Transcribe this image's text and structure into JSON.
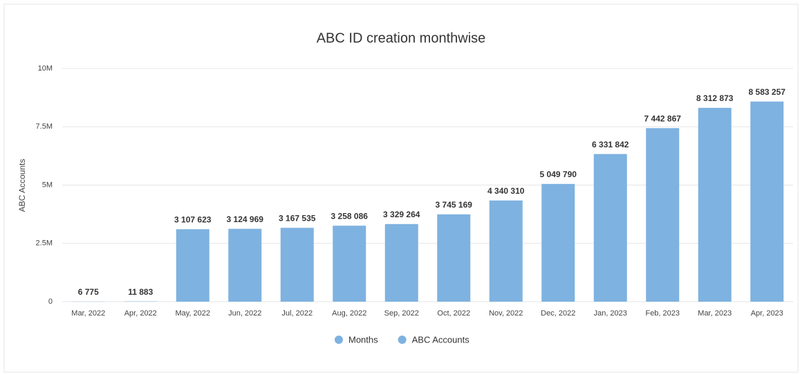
{
  "chart_data": {
    "type": "bar",
    "title": "ABC ID creation monthwise",
    "y_label": "ABC Accounts",
    "categories": [
      "Mar, 2022",
      "Apr, 2022",
      "May, 2022",
      "Jun, 2022",
      "Jul, 2022",
      "Aug, 2022",
      "Sep, 2022",
      "Oct, 2022",
      "Nov, 2022",
      "Dec, 2022",
      "Jan, 2023",
      "Feb, 2023",
      "Mar, 2023",
      "Apr, 2023"
    ],
    "series": [
      {
        "name": "ABC Accounts",
        "color": "#7eb2e0",
        "values": [
          6775,
          11883,
          3107623,
          3124969,
          3167535,
          3258086,
          3329264,
          3745169,
          4340310,
          5049790,
          6331842,
          7442867,
          8312873,
          8583257
        ],
        "value_labels": [
          "6 775",
          "11 883",
          "3 107 623",
          "3 124 969",
          "3 167 535",
          "3 258 086",
          "3 329 264",
          "3 745 169",
          "4 340 310",
          "5 049 790",
          "6 331 842",
          "7 442 867",
          "8 312 873",
          "8 583 257"
        ]
      }
    ],
    "extra_legend": [
      {
        "name": "Months",
        "color": "#7eb2e0"
      }
    ],
    "ylim": [
      0,
      10000000
    ],
    "yticks": [
      0,
      {
        "value": 2500000,
        "label": "2.5M"
      },
      {
        "value": 5000000,
        "label": "5M"
      },
      {
        "value": 7500000,
        "label": "7.5M"
      },
      {
        "value": 10000000,
        "label": "10M"
      }
    ],
    "grid": true
  }
}
